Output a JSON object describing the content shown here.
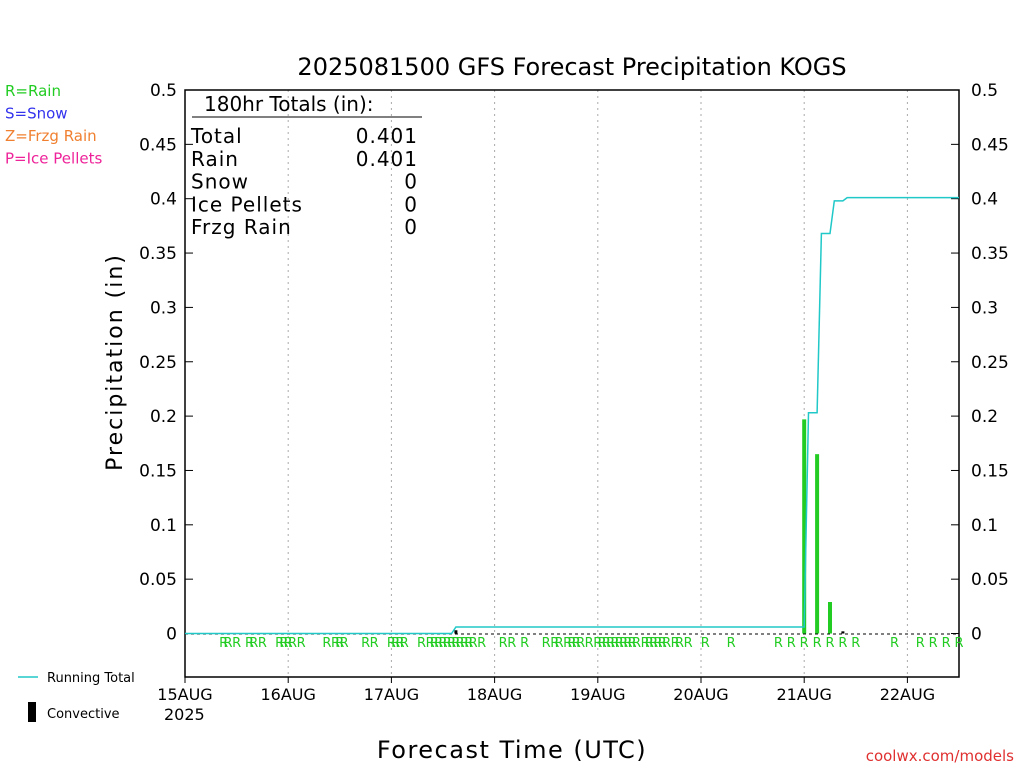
{
  "chart_data": {
    "type": "bar",
    "title": "2025081500 GFS Forecast Precipitation KOGS",
    "xlabel": "Forecast Time (UTC)",
    "ylabel": "Precipitation (in)",
    "ylim": [
      -0.04,
      0.5
    ],
    "y_ticks": [
      0,
      0.05,
      0.1,
      0.15,
      0.2,
      0.25,
      0.3,
      0.35,
      0.4,
      0.45,
      0.5
    ],
    "y_tick_labels": [
      "0",
      "0.05",
      "0.1",
      "0.15",
      "0.2",
      "0.25",
      "0.3",
      "0.35",
      "0.4",
      "0.45",
      "0.5"
    ],
    "x_unit": "forecast hour since 2025-08-15 00 UTC",
    "xlim": [
      0,
      180
    ],
    "x_tick_labels": [
      "15AUG",
      "16AUG",
      "17AUG",
      "18AUG",
      "19AUG",
      "20AUG",
      "21AUG",
      "22AUG"
    ],
    "x_year_label": "2025",
    "grid": "vertical dotted",
    "source_label": "coolwx.com/models",
    "legend_types": [
      {
        "text": "R=Rain",
        "color": "#22cc22"
      },
      {
        "text": "S=Snow",
        "color": "#3333ee"
      },
      {
        "text": "Z=Frzg Rain",
        "color": "#f08030"
      },
      {
        "text": "P=Ice Pellets",
        "color": "#ee2299"
      }
    ],
    "legend_series": [
      {
        "text": "Running Total",
        "color": "#20c8c8"
      },
      {
        "text": "Convective",
        "color": "#000000"
      }
    ],
    "totals_box": {
      "header": "180hr Totals (in):",
      "rows": [
        {
          "label": "Total",
          "value": "0.401"
        },
        {
          "label": "Rain",
          "value": "0.401"
        },
        {
          "label": "Snow",
          "value": "0"
        },
        {
          "label": "Ice Pellets",
          "value": "0"
        },
        {
          "label": "Frzg Rain",
          "value": "0"
        }
      ]
    },
    "precip_bars": [
      {
        "x": 63,
        "value": 0.003,
        "type": "convective"
      },
      {
        "x": 144,
        "value": 0.197,
        "type": "rain"
      },
      {
        "x": 147,
        "value": 0.165,
        "type": "rain"
      },
      {
        "x": 150,
        "value": 0.029,
        "type": "rain"
      },
      {
        "x": 153,
        "value": 0.002,
        "type": "convective"
      }
    ],
    "running_total": {
      "name": "Running Total",
      "x": [
        0,
        62,
        63,
        144,
        145,
        147,
        148,
        150,
        151,
        153,
        154,
        180
      ],
      "values": [
        0,
        0,
        0.006,
        0.006,
        0.203,
        0.203,
        0.368,
        0.368,
        0.398,
        0.398,
        0.401,
        0.401
      ]
    },
    "rain_markers": [
      9,
      10,
      12,
      15,
      16,
      18,
      22,
      23,
      24,
      25,
      27,
      33,
      35,
      36,
      37,
      42,
      44,
      48,
      49,
      50,
      51,
      55,
      57,
      58,
      59,
      60,
      61,
      62,
      63,
      64,
      65,
      66,
      67,
      69,
      74,
      76,
      79,
      84,
      86,
      87,
      89,
      90,
      91,
      92,
      94,
      96,
      97,
      98,
      99,
      100,
      101,
      102,
      103,
      104,
      105,
      107,
      108,
      109,
      110,
      111,
      112,
      114,
      115,
      117,
      121,
      127,
      138,
      141,
      144,
      147,
      150,
      153,
      156,
      165,
      171,
      174,
      177,
      180
    ]
  }
}
